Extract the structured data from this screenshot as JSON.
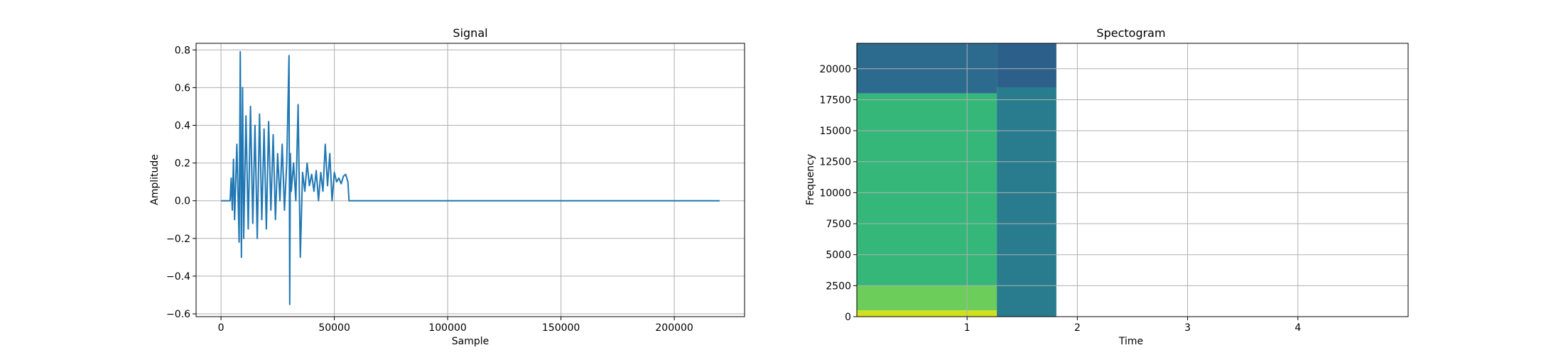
{
  "chart_data": [
    {
      "type": "line",
      "title": "Signal",
      "xlabel": "Sample",
      "ylabel": "Amplitude",
      "xlim": [
        -11000,
        231000
      ],
      "ylim": [
        -0.615,
        0.835
      ],
      "x_ticks": [
        0,
        50000,
        100000,
        150000,
        200000
      ],
      "x_tick_labels": [
        "0",
        "50000",
        "100000",
        "150000",
        "200000"
      ],
      "y_ticks": [
        -0.6,
        -0.4,
        -0.2,
        0.0,
        0.2,
        0.4,
        0.6,
        0.8
      ],
      "y_tick_labels": [
        "−0.6",
        "−0.4",
        "−0.2",
        "0.0",
        "0.2",
        "0.4",
        "0.6",
        "0.8"
      ],
      "grid": true,
      "series": [
        {
          "color": "#1f77b4",
          "x": [
            0,
            4000,
            4500,
            5000,
            5500,
            6000,
            7000,
            8000,
            8500,
            9000,
            9500,
            10000,
            11000,
            12000,
            13000,
            14000,
            15000,
            16000,
            17000,
            18000,
            19000,
            20000,
            21000,
            22000,
            23000,
            24000,
            25000,
            26000,
            27000,
            28000,
            29000,
            30000,
            30300,
            30600,
            31000,
            32000,
            33000,
            34000,
            35000,
            36000,
            37000,
            38000,
            39000,
            40000,
            41000,
            42000,
            43000,
            44000,
            45000,
            46000,
            47000,
            48000,
            49000,
            50000,
            51000,
            52000,
            53000,
            54000,
            55000,
            56000,
            56500,
            57000,
            220000
          ],
          "y": [
            0.0,
            0.0,
            0.12,
            -0.05,
            0.22,
            -0.1,
            0.3,
            -0.22,
            0.79,
            -0.3,
            0.6,
            -0.2,
            0.45,
            -0.15,
            0.5,
            -0.12,
            0.4,
            -0.2,
            0.46,
            -0.1,
            0.38,
            -0.15,
            0.42,
            -0.05,
            0.35,
            -0.1,
            0.25,
            0.0,
            0.3,
            -0.05,
            0.2,
            0.77,
            -0.55,
            0.25,
            0.05,
            0.2,
            0.0,
            0.51,
            -0.3,
            0.15,
            0.05,
            0.2,
            0.08,
            0.14,
            0.05,
            0.16,
            0.0,
            0.15,
            0.05,
            0.3,
            0.08,
            0.25,
            0.0,
            0.15,
            0.1,
            0.12,
            0.09,
            0.13,
            0.14,
            0.1,
            0.0,
            0.0,
            0.0
          ]
        }
      ]
    },
    {
      "type": "heatmap",
      "title": "Spectogram",
      "xlabel": "Time",
      "ylabel": "Frequency",
      "xlim": [
        0,
        5.0
      ],
      "ylim": [
        0,
        22050
      ],
      "x_ticks": [
        1,
        2,
        3,
        4
      ],
      "x_tick_labels": [
        "1",
        "2",
        "3",
        "4"
      ],
      "y_ticks": [
        0,
        2500,
        5000,
        7500,
        10000,
        12500,
        15000,
        17500,
        20000
      ],
      "y_tick_labels": [
        "0",
        "2500",
        "5000",
        "7500",
        "10000",
        "12500",
        "15000",
        "17500",
        "20000"
      ],
      "grid": true,
      "colormap": "viridis",
      "data_time_range": [
        0,
        1.81
      ],
      "regions": [
        {
          "t": [
            0.0,
            1.27
          ],
          "f": [
            18000,
            22050
          ],
          "color": "#2d6b8e"
        },
        {
          "t": [
            0.0,
            1.27
          ],
          "f": [
            2500,
            18000
          ],
          "color": "#35b779"
        },
        {
          "t": [
            0.0,
            1.27
          ],
          "f": [
            500,
            2500
          ],
          "color": "#6ccd5a"
        },
        {
          "t": [
            0.0,
            1.27
          ],
          "f": [
            0,
            500
          ],
          "color": "#d0e11c"
        },
        {
          "t": [
            1.27,
            1.81
          ],
          "f": [
            18500,
            22050
          ],
          "color": "#2c5f8a"
        },
        {
          "t": [
            1.27,
            1.81
          ],
          "f": [
            0,
            18500
          ],
          "color": "#287c8e"
        }
      ]
    }
  ]
}
